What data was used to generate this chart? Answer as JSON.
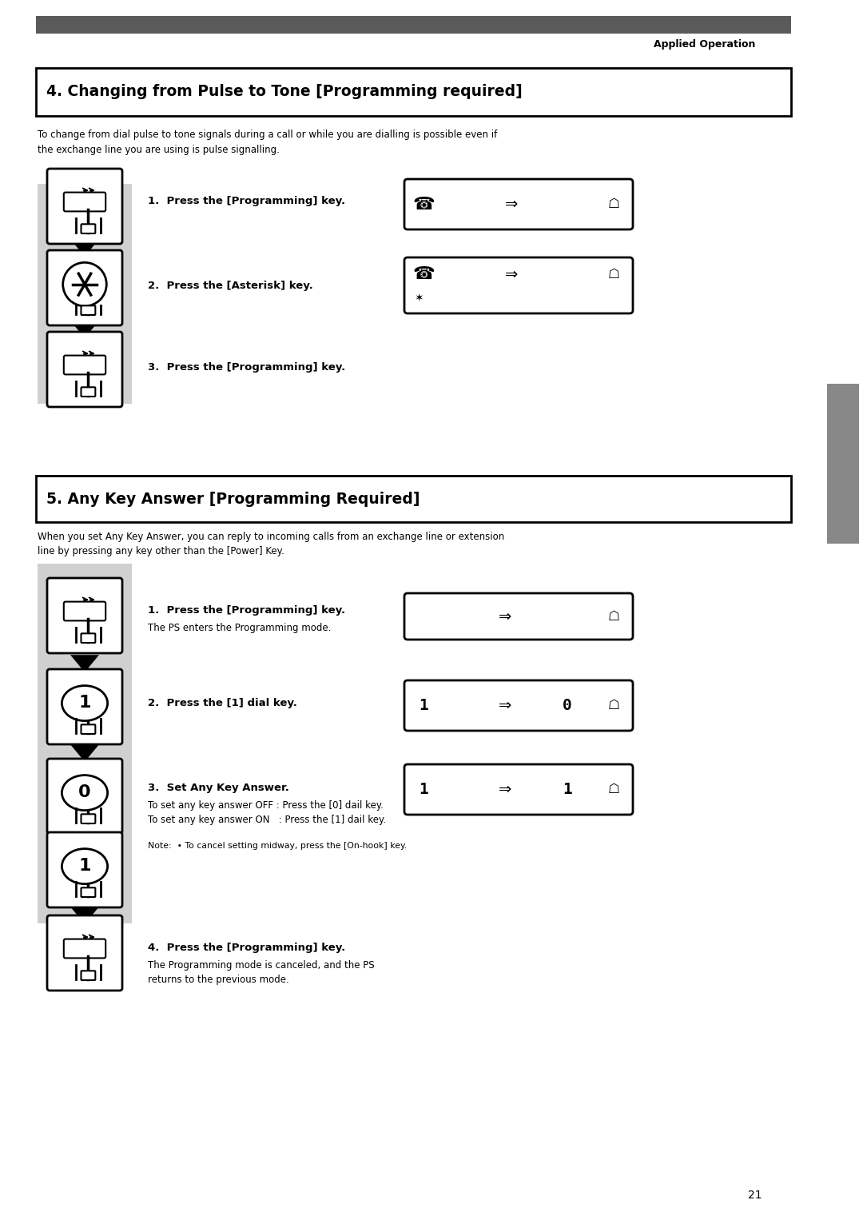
{
  "page_bg": "#ffffff",
  "top_bar_color": "#5a5a5a",
  "header_text": "Applied Operation",
  "section4_title": "4. Changing from Pulse to Tone [Programming required]",
  "section4_desc": "To change from dial pulse to tone signals during a call or while you are dialling is possible even if\nthe exchange line you are using is pulse signalling.",
  "section4_steps": [
    "1.  Press the [Programming] key.",
    "2.  Press the [Asterisk] key.",
    "3.  Press the [Programming] key."
  ],
  "section5_title": "5. Any Key Answer [Programming Required]",
  "section5_desc": "When you set Any Key Answer, you can reply to incoming calls from an exchange line or extension\nline by pressing any key other than the [Power] Key.",
  "section5_step1_bold": "1.  Press the [Programming] key.",
  "section5_step1_sub": "The PS enters the Programming mode.",
  "section5_step2_bold": "2.  Press the [1] dial key.",
  "section5_step3_bold": "3.  Set Any Key Answer.",
  "section5_step3_sub1": "To set any key answer OFF : Press the [0] dail key.",
  "section5_step3_sub2": "To set any key answer ON   : Press the [1] dail key.",
  "section5_note": "Note:  • To cancel setting midway, press the [On-hook] key.",
  "section5_step4_bold": "4.  Press the [Programming] key.",
  "section5_step4_sub1": "The Programming mode is canceled, and the PS",
  "section5_step4_sub2": "returns to the previous mode.",
  "page_number": "21",
  "gray_panel": "#d0d0d0",
  "side_tab_color": "#888888"
}
